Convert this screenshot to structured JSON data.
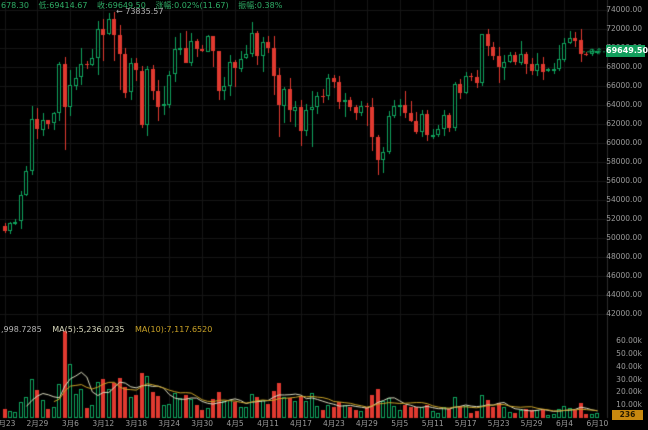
{
  "meta": {
    "colors": {
      "background": "#000000",
      "up": "#0fa25c",
      "down": "#e03a30",
      "grid": "#161616",
      "axis_line": "#2b2b2b",
      "axis_text": "#9a9a9a",
      "info_text": "#2fae66",
      "annotation_text": "#b5b5b5",
      "price_badge_bg": "#129f5d",
      "time_badge_bg": "#c8880f",
      "ma5_line": "#d9d9bd",
      "ma10_line": "#c9a227"
    }
  },
  "info_bar": {
    "high_partial": "678.30",
    "low": "低:69414.67",
    "close": "收:69649.50",
    "change": "涨幅:0.02%(11.67)",
    "amplitude": "振幅:0.38%"
  },
  "main_chart": {
    "peak_annotation": "← 73835.57",
    "last_price_badge": "69649.50"
  },
  "volume_pane": {
    "volume_label": ",998.7285",
    "ma5_label": "MA(5):5,236.0235",
    "ma10_label": "MA(10):7,117.6520"
  },
  "time_axis_badge": "236",
  "chart_data": {
    "type": "candlestick",
    "legend_position": "top-left",
    "grid": true,
    "price_axis": {
      "min": 42000,
      "max": 74000,
      "step": 2000,
      "labels": [
        "74000.00",
        "72000.00",
        "70000.00",
        "68000.00",
        "66000.00",
        "64000.00",
        "62000.00",
        "60000.00",
        "58000.00",
        "56000.00",
        "54000.00",
        "52000.00",
        "50000.00",
        "48000.00",
        "46000.00",
        "44000.00",
        "42000.00"
      ]
    },
    "volume_axis": {
      "min": 0,
      "max": 60,
      "step": 10,
      "unit": "k",
      "labels": [
        "60.00k",
        "50.00k",
        "40.00k",
        "30.00k",
        "20.00k",
        "10.00k"
      ]
    },
    "x_tick_every": 6,
    "x_tick_labels": [
      "2月23",
      "2月29",
      "3月6",
      "3月12",
      "3月18",
      "3月24",
      "3月30",
      "4月5",
      "4月11",
      "4月17",
      "4月23",
      "4月29",
      "5月5",
      "5月11",
      "5月17",
      "5月23",
      "5月29",
      "6月4",
      "6月10"
    ],
    "annotation": {
      "text": "← 73835.57",
      "price": 73835.57,
      "candle_index": 20
    },
    "last_close": 69649.5,
    "volume_ma": {
      "ma5": 5236.0235,
      "ma10": 7117.652
    },
    "candles": [
      [
        "2月23",
        51300,
        51540,
        50500,
        50740,
        7.2
      ],
      [
        "2月24",
        50740,
        51670,
        50390,
        51570,
        5.1
      ],
      [
        "2月25",
        51570,
        51960,
        51290,
        51730,
        4.3
      ],
      [
        "2月26",
        51730,
        54910,
        50930,
        54480,
        12.5
      ],
      [
        "2月27",
        54480,
        57590,
        54440,
        57040,
        16.2
      ],
      [
        "2月28",
        57040,
        63940,
        56690,
        62500,
        30.4
      ],
      [
        "2月29",
        62500,
        63660,
        60360,
        61400,
        22.1
      ],
      [
        "3月1",
        61400,
        63160,
        60780,
        62440,
        14.3
      ],
      [
        "3月2",
        62440,
        62460,
        61550,
        62030,
        7.4
      ],
      [
        "3月3",
        62030,
        63240,
        61310,
        63130,
        8.2
      ],
      [
        "3月4",
        63130,
        68520,
        62280,
        68330,
        26.8
      ],
      [
        "3月5",
        68330,
        69010,
        59250,
        63800,
        68.0
      ],
      [
        "3月6",
        63800,
        67650,
        62780,
        66080,
        42.3
      ],
      [
        "3月7",
        66080,
        67990,
        65570,
        66870,
        18.6
      ],
      [
        "3月8",
        66870,
        69990,
        66070,
        68290,
        22.4
      ],
      [
        "3月9",
        68290,
        68660,
        67840,
        68250,
        8.1
      ],
      [
        "3月10",
        68250,
        69890,
        68090,
        68960,
        10.3
      ],
      [
        "3月11",
        68960,
        72850,
        67170,
        72050,
        28.2
      ],
      [
        "3月12",
        72050,
        73010,
        68620,
        71440,
        30.6
      ],
      [
        "3月13",
        71440,
        73680,
        71330,
        73050,
        22.3
      ],
      [
        "3月14",
        73050,
        73835.57,
        68640,
        71390,
        27.5
      ],
      [
        "3月15",
        71390,
        72420,
        65560,
        69400,
        31.2
      ],
      [
        "3月16",
        69400,
        70040,
        64780,
        65310,
        24.4
      ],
      [
        "3月17",
        65310,
        68910,
        64530,
        68390,
        16.1
      ],
      [
        "3月18",
        68390,
        68960,
        66560,
        67610,
        18.3
      ],
      [
        "3月19",
        67610,
        68110,
        61550,
        61930,
        35.4
      ],
      [
        "3月20",
        61930,
        68120,
        60770,
        67840,
        33.1
      ],
      [
        "3月21",
        67840,
        68250,
        64560,
        65500,
        20.2
      ],
      [
        "3月22",
        65500,
        66660,
        62300,
        63800,
        17.4
      ],
      [
        "3月23",
        63800,
        65990,
        62960,
        64060,
        10.2
      ],
      [
        "3月24",
        64060,
        67620,
        63770,
        67210,
        10.8
      ],
      [
        "3月25",
        67210,
        71160,
        66390,
        69880,
        19.3
      ],
      [
        "3月26",
        69880,
        71560,
        69280,
        69990,
        15.2
      ],
      [
        "3月27",
        69990,
        71760,
        68360,
        68420,
        17.6
      ],
      [
        "3月28",
        68420,
        71570,
        68110,
        70740,
        15.1
      ],
      [
        "3月29",
        70740,
        70910,
        69030,
        69850,
        10.4
      ],
      [
        "3月30",
        69850,
        70320,
        69560,
        69620,
        6.3
      ],
      [
        "3月31",
        69620,
        71370,
        69560,
        71280,
        7.8
      ],
      [
        "4月1",
        71280,
        71300,
        68060,
        69670,
        14.6
      ],
      [
        "4月2",
        69670,
        69700,
        64530,
        65440,
        20.3
      ],
      [
        "4月3",
        65440,
        66910,
        64490,
        65970,
        13.2
      ],
      [
        "4月4",
        65970,
        69290,
        64940,
        68510,
        14.4
      ],
      [
        "4月5",
        68510,
        68740,
        65940,
        67850,
        12.1
      ],
      [
        "4月6",
        67850,
        69670,
        67440,
        68890,
        8.4
      ],
      [
        "4月7",
        68890,
        70290,
        68780,
        69360,
        8.2
      ],
      [
        "4月8",
        69360,
        72770,
        69040,
        71620,
        18.5
      ],
      [
        "4月9",
        71620,
        71780,
        68190,
        69150,
        16.3
      ],
      [
        "4月10",
        69150,
        71160,
        67480,
        70620,
        14.2
      ],
      [
        "4月11",
        70620,
        71310,
        69560,
        70010,
        10.6
      ],
      [
        "4月12",
        70010,
        71240,
        65080,
        67110,
        21.4
      ],
      [
        "4月13",
        67110,
        67940,
        60640,
        63920,
        27.3
      ],
      [
        "4月14",
        63920,
        65860,
        62110,
        65660,
        16.2
      ],
      [
        "4月15",
        65660,
        66880,
        62250,
        63440,
        15.3
      ],
      [
        "4月16",
        63440,
        64370,
        61590,
        63810,
        13.1
      ],
      [
        "4月17",
        63810,
        64510,
        59620,
        61280,
        17.2
      ],
      [
        "4月18",
        61280,
        64130,
        60790,
        63460,
        13.4
      ],
      [
        "4月19",
        63460,
        65460,
        59580,
        63760,
        19.2
      ],
      [
        "4月20",
        63760,
        65420,
        63100,
        64950,
        9.3
      ],
      [
        "4月21",
        64950,
        65710,
        64230,
        64940,
        6.2
      ],
      [
        "4月22",
        64940,
        67240,
        64490,
        66830,
        10.4
      ],
      [
        "4月23",
        66830,
        67190,
        65810,
        66420,
        8.3
      ],
      [
        "4月24",
        66420,
        67080,
        63580,
        64280,
        12.2
      ],
      [
        "4月25",
        64280,
        65290,
        62770,
        64490,
        10.1
      ],
      [
        "4月26",
        64490,
        64810,
        63330,
        63740,
        8.2
      ],
      [
        "4月27",
        63740,
        63950,
        62370,
        63110,
        6.1
      ],
      [
        "4月28",
        63110,
        64380,
        62780,
        63870,
        5.4
      ],
      [
        "4月29",
        63870,
        64210,
        61760,
        63840,
        8.6
      ],
      [
        "4月30",
        63840,
        64710,
        59160,
        60630,
        18.3
      ],
      [
        "5月1",
        60630,
        60810,
        56550,
        58250,
        22.4
      ],
      [
        "5月2",
        58250,
        59610,
        56870,
        59050,
        13.2
      ],
      [
        "5月3",
        59050,
        63330,
        58850,
        62890,
        15.4
      ],
      [
        "5月4",
        62890,
        64510,
        62590,
        63890,
        9.2
      ],
      [
        "5月5",
        63890,
        64610,
        62790,
        64010,
        6.4
      ],
      [
        "5月6",
        64010,
        65510,
        62690,
        63160,
        10.2
      ],
      [
        "5月7",
        63160,
        64430,
        62250,
        62310,
        8.3
      ],
      [
        "5月8",
        62310,
        63240,
        60880,
        61190,
        8.4
      ],
      [
        "5月9",
        61190,
        63430,
        60620,
        63050,
        8.2
      ],
      [
        "5月10",
        63050,
        63460,
        60190,
        60790,
        10.3
      ],
      [
        "5月11",
        60790,
        61510,
        60480,
        60820,
        5.2
      ],
      [
        "5月12",
        60820,
        61850,
        60600,
        61480,
        4.1
      ],
      [
        "5月13",
        61480,
        63450,
        60740,
        62940,
        8.3
      ],
      [
        "5月14",
        62940,
        63120,
        61140,
        61550,
        7.2
      ],
      [
        "5月15",
        61550,
        66450,
        61310,
        66210,
        16.4
      ],
      [
        "5月16",
        66210,
        66760,
        64650,
        65230,
        9.3
      ],
      [
        "5月17",
        65230,
        67460,
        65100,
        67050,
        9.4
      ],
      [
        "5月18",
        67050,
        67410,
        66610,
        66920,
        4.2
      ],
      [
        "5月19",
        66920,
        67710,
        65860,
        66280,
        5.1
      ],
      [
        "5月20",
        66280,
        71500,
        66050,
        71440,
        18.3
      ],
      [
        "5月21",
        71440,
        71990,
        69170,
        70150,
        14.2
      ],
      [
        "5月22",
        70150,
        70680,
        68830,
        69170,
        8.4
      ],
      [
        "5月23",
        69170,
        70110,
        66340,
        67970,
        11.3
      ],
      [
        "5月24",
        67970,
        69270,
        66620,
        68550,
        8.2
      ],
      [
        "5月25",
        68550,
        69630,
        68510,
        69280,
        4.3
      ],
      [
        "5月26",
        69280,
        69570,
        68170,
        68520,
        3.6
      ],
      [
        "5月27",
        68520,
        70700,
        68220,
        69420,
        6.2
      ],
      [
        "5月28",
        69420,
        69610,
        67270,
        68360,
        7.1
      ],
      [
        "5月29",
        68360,
        68960,
        67120,
        67640,
        6.3
      ],
      [
        "5月30",
        67640,
        69510,
        67110,
        68350,
        6.6
      ],
      [
        "5月31",
        68350,
        69060,
        66650,
        67540,
        7.2
      ],
      [
        "6月1",
        67540,
        67860,
        67420,
        67760,
        2.6
      ],
      [
        "6月2",
        67760,
        68450,
        67240,
        67790,
        3.1
      ],
      [
        "6月3",
        67790,
        70310,
        67590,
        68810,
        7.3
      ],
      [
        "6月4",
        68810,
        71060,
        68550,
        70570,
        9.2
      ],
      [
        "6月5",
        70570,
        71760,
        70390,
        71100,
        8.1
      ],
      [
        "6月6",
        71100,
        71710,
        70140,
        70800,
        6.2
      ],
      [
        "6月7",
        70800,
        71960,
        68440,
        69350,
        11.4
      ],
      [
        "6月8",
        69350,
        69590,
        69160,
        69310,
        3.2
      ],
      [
        "6月9",
        69310,
        69860,
        69110,
        69637.83,
        2.9
      ],
      [
        "6月10",
        69637.83,
        69678.3,
        69414.67,
        69649.5,
        4.0
      ]
    ]
  }
}
